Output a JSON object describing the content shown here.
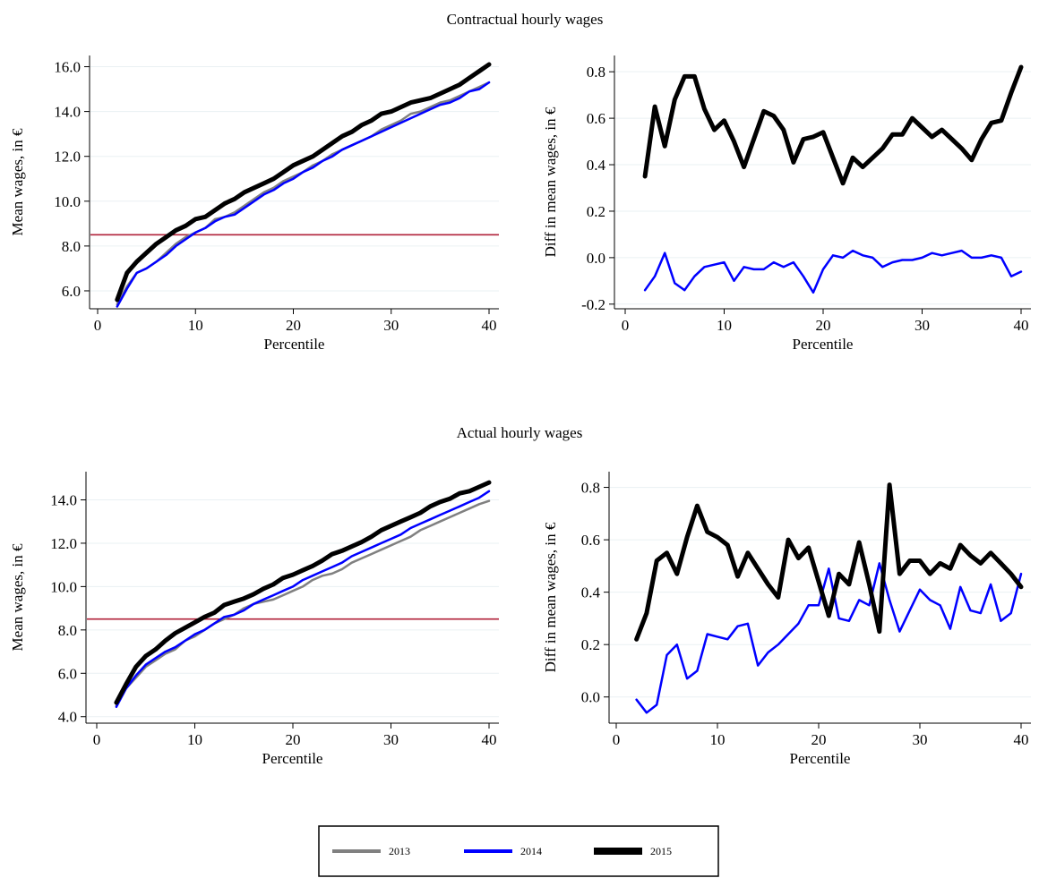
{
  "panels": [
    {
      "title": "Contractual hourly wages"
    },
    {
      "title": "Actual hourly wages"
    }
  ],
  "legend": {
    "entries": [
      {
        "label": "2013",
        "color": "#808080",
        "width": 4
      },
      {
        "label": "2014",
        "color": "#0000ff",
        "width": 4
      },
      {
        "label": "2015",
        "color": "#000000",
        "width": 8
      }
    ]
  },
  "colors": {
    "reference_line": "#b0223a",
    "grid": "#eaf0f3"
  },
  "chart_data": [
    {
      "type": "line",
      "xlabel": "Percentile",
      "ylabel": "Mean wages, in €",
      "xlim": [
        0,
        40
      ],
      "ylim": [
        5.2,
        16.5
      ],
      "xticks": [
        0,
        10,
        20,
        30,
        40
      ],
      "yticks": [
        6,
        8,
        10,
        12,
        14,
        16
      ],
      "yticklabels": [
        "6.0",
        "8.0",
        "10.0",
        "12.0",
        "14.0",
        "16.0"
      ],
      "reference_line": {
        "y": 8.5,
        "color": "#b0223a"
      },
      "x": [
        2,
        3,
        4,
        5,
        6,
        7,
        8,
        9,
        10,
        11,
        12,
        13,
        14,
        15,
        16,
        17,
        18,
        19,
        20,
        21,
        22,
        23,
        24,
        25,
        26,
        27,
        28,
        29,
        30,
        31,
        32,
        33,
        34,
        35,
        36,
        37,
        38,
        39,
        40
      ],
      "series": [
        {
          "name": "2013",
          "color": "#808080",
          "width": 2.5,
          "values": [
            5.4,
            6.2,
            6.8,
            7.0,
            7.3,
            7.7,
            8.1,
            8.4,
            8.6,
            8.8,
            9.2,
            9.3,
            9.5,
            9.8,
            10.1,
            10.4,
            10.6,
            10.9,
            11.1,
            11.3,
            11.6,
            11.8,
            12.1,
            12.3,
            12.5,
            12.7,
            12.9,
            13.2,
            13.4,
            13.6,
            13.9,
            14.0,
            14.2,
            14.4,
            14.5,
            14.7,
            14.9,
            15.1,
            15.3
          ]
        },
        {
          "name": "2014",
          "color": "#0000ff",
          "width": 2.5,
          "values": [
            5.3,
            6.1,
            6.8,
            7.0,
            7.3,
            7.6,
            8.0,
            8.3,
            8.6,
            8.8,
            9.1,
            9.3,
            9.4,
            9.7,
            10.0,
            10.3,
            10.5,
            10.8,
            11.0,
            11.3,
            11.5,
            11.8,
            12.0,
            12.3,
            12.5,
            12.7,
            12.9,
            13.1,
            13.3,
            13.5,
            13.7,
            13.9,
            14.1,
            14.3,
            14.4,
            14.6,
            14.9,
            15.0,
            15.3
          ]
        },
        {
          "name": "2015",
          "color": "#000000",
          "width": 5,
          "values": [
            5.6,
            6.8,
            7.3,
            7.7,
            8.1,
            8.4,
            8.7,
            8.9,
            9.2,
            9.3,
            9.6,
            9.9,
            10.1,
            10.4,
            10.6,
            10.8,
            11.0,
            11.3,
            11.6,
            11.8,
            12.0,
            12.3,
            12.6,
            12.9,
            13.1,
            13.4,
            13.6,
            13.9,
            14.0,
            14.2,
            14.4,
            14.5,
            14.6,
            14.8,
            15.0,
            15.2,
            15.5,
            15.8,
            16.1
          ]
        }
      ]
    },
    {
      "type": "line",
      "xlabel": "Percentile",
      "ylabel": "Diff in mean wages, in €",
      "xlim": [
        0,
        40
      ],
      "ylim": [
        -0.22,
        0.87
      ],
      "xticks": [
        0,
        10,
        20,
        30,
        40
      ],
      "yticks": [
        -0.2,
        0,
        0.2,
        0.4,
        0.6,
        0.8
      ],
      "yticklabels": [
        "-0.2",
        "0.0",
        "0.2",
        "0.4",
        "0.6",
        "0.8"
      ],
      "x": [
        2,
        3,
        4,
        5,
        6,
        7,
        8,
        9,
        10,
        11,
        12,
        13,
        14,
        15,
        16,
        17,
        18,
        19,
        20,
        21,
        22,
        23,
        24,
        25,
        26,
        27,
        28,
        29,
        30,
        31,
        32,
        33,
        34,
        35,
        36,
        37,
        38,
        39,
        40
      ],
      "series": [
        {
          "name": "2014",
          "color": "#0000ff",
          "width": 2.5,
          "values": [
            -0.14,
            -0.08,
            0.02,
            -0.11,
            -0.14,
            -0.08,
            -0.04,
            -0.03,
            -0.02,
            -0.1,
            -0.04,
            -0.05,
            -0.05,
            -0.02,
            -0.04,
            -0.02,
            -0.08,
            -0.15,
            -0.05,
            0.01,
            0.0,
            0.03,
            0.01,
            0.0,
            -0.04,
            -0.02,
            -0.01,
            -0.01,
            0.0,
            0.02,
            0.01,
            0.02,
            0.03,
            0.0,
            0.0,
            0.01,
            0.0,
            -0.08,
            -0.06
          ]
        },
        {
          "name": "2015",
          "color": "#000000",
          "width": 5,
          "values": [
            0.35,
            0.65,
            0.48,
            0.68,
            0.78,
            0.78,
            0.64,
            0.55,
            0.59,
            0.5,
            0.39,
            0.51,
            0.63,
            0.61,
            0.55,
            0.41,
            0.51,
            0.52,
            0.54,
            0.43,
            0.32,
            0.43,
            0.39,
            0.43,
            0.47,
            0.53,
            0.53,
            0.6,
            0.56,
            0.52,
            0.55,
            0.51,
            0.47,
            0.42,
            0.51,
            0.58,
            0.59,
            0.71,
            0.82
          ]
        }
      ]
    },
    {
      "type": "line",
      "xlabel": "Percentile",
      "ylabel": "Mean wages, in €",
      "xlim": [
        0,
        40
      ],
      "ylim": [
        3.7,
        15.3
      ],
      "xticks": [
        0,
        10,
        20,
        30,
        40
      ],
      "yticks": [
        4,
        6,
        8,
        10,
        12,
        14
      ],
      "yticklabels": [
        "4.0",
        "6.0",
        "8.0",
        "10.0",
        "12.0",
        "14.0"
      ],
      "reference_line": {
        "y": 8.5,
        "color": "#b0223a"
      },
      "x": [
        2,
        3,
        4,
        5,
        6,
        7,
        8,
        9,
        10,
        11,
        12,
        13,
        14,
        15,
        16,
        17,
        18,
        19,
        20,
        21,
        22,
        23,
        24,
        25,
        26,
        27,
        28,
        29,
        30,
        31,
        32,
        33,
        34,
        35,
        36,
        37,
        38,
        39,
        40
      ],
      "series": [
        {
          "name": "2013",
          "color": "#808080",
          "width": 2.5,
          "values": [
            4.5,
            5.3,
            5.8,
            6.3,
            6.6,
            6.9,
            7.1,
            7.5,
            7.7,
            8.0,
            8.3,
            8.5,
            8.7,
            9.0,
            9.2,
            9.3,
            9.4,
            9.6,
            9.8,
            10.0,
            10.3,
            10.5,
            10.6,
            10.8,
            11.1,
            11.3,
            11.5,
            11.7,
            11.9,
            12.1,
            12.3,
            12.6,
            12.8,
            13.0,
            13.2,
            13.4,
            13.6,
            13.8,
            13.95
          ]
        },
        {
          "name": "2014",
          "color": "#0000ff",
          "width": 2.5,
          "values": [
            4.45,
            5.3,
            5.9,
            6.4,
            6.7,
            7.0,
            7.2,
            7.5,
            7.8,
            8.0,
            8.3,
            8.6,
            8.7,
            8.9,
            9.2,
            9.4,
            9.6,
            9.8,
            10.0,
            10.3,
            10.5,
            10.7,
            10.9,
            11.1,
            11.4,
            11.6,
            11.8,
            12.0,
            12.2,
            12.4,
            12.7,
            12.9,
            13.1,
            13.3,
            13.5,
            13.7,
            13.9,
            14.1,
            14.4
          ]
        },
        {
          "name": "2015",
          "color": "#000000",
          "width": 5,
          "values": [
            4.65,
            5.5,
            6.3,
            6.8,
            7.1,
            7.5,
            7.85,
            8.1,
            8.35,
            8.6,
            8.8,
            9.15,
            9.3,
            9.45,
            9.65,
            9.9,
            10.1,
            10.4,
            10.55,
            10.75,
            10.95,
            11.2,
            11.5,
            11.65,
            11.85,
            12.05,
            12.3,
            12.6,
            12.8,
            13.0,
            13.2,
            13.4,
            13.7,
            13.9,
            14.05,
            14.3,
            14.4,
            14.6,
            14.8
          ]
        }
      ]
    },
    {
      "type": "line",
      "xlabel": "Percentile",
      "ylabel": "Diff in mean wages, in €",
      "xlim": [
        0,
        40
      ],
      "ylim": [
        -0.1,
        0.86
      ],
      "xticks": [
        0,
        10,
        20,
        30,
        40
      ],
      "yticks": [
        0,
        0.2,
        0.4,
        0.6,
        0.8
      ],
      "yticklabels": [
        "0.0",
        "0.2",
        "0.4",
        "0.6",
        "0.8"
      ],
      "x": [
        2,
        3,
        4,
        5,
        6,
        7,
        8,
        9,
        10,
        11,
        12,
        13,
        14,
        15,
        16,
        17,
        18,
        19,
        20,
        21,
        22,
        23,
        24,
        25,
        26,
        27,
        28,
        29,
        30,
        31,
        32,
        33,
        34,
        35,
        36,
        37,
        38,
        39,
        40
      ],
      "series": [
        {
          "name": "2014",
          "color": "#0000ff",
          "width": 2.5,
          "values": [
            -0.01,
            -0.06,
            -0.03,
            0.16,
            0.2,
            0.07,
            0.1,
            0.24,
            0.23,
            0.22,
            0.27,
            0.28,
            0.12,
            0.17,
            0.2,
            0.24,
            0.28,
            0.35,
            0.35,
            0.49,
            0.3,
            0.29,
            0.37,
            0.35,
            0.51,
            0.37,
            0.25,
            0.33,
            0.41,
            0.37,
            0.35,
            0.26,
            0.42,
            0.33,
            0.32,
            0.43,
            0.29,
            0.32,
            0.47
          ]
        },
        {
          "name": "2015",
          "color": "#000000",
          "width": 5,
          "values": [
            0.22,
            0.32,
            0.52,
            0.55,
            0.47,
            0.61,
            0.73,
            0.63,
            0.61,
            0.58,
            0.46,
            0.55,
            0.49,
            0.43,
            0.38,
            0.6,
            0.53,
            0.57,
            0.44,
            0.31,
            0.47,
            0.43,
            0.59,
            0.43,
            0.25,
            0.81,
            0.47,
            0.52,
            0.52,
            0.47,
            0.51,
            0.49,
            0.58,
            0.54,
            0.51,
            0.55,
            0.51,
            0.47,
            0.42
          ]
        }
      ]
    }
  ]
}
